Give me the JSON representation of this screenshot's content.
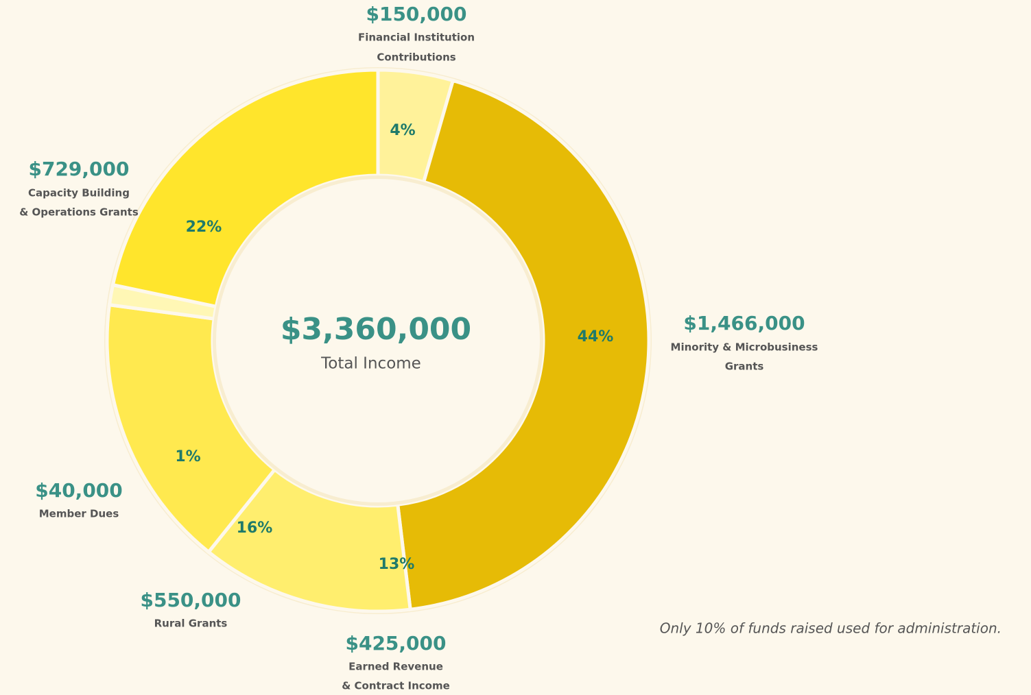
{
  "chart_data": {
    "type": "donut",
    "categories": [
      [
        "Financial Institution",
        "Contributions"
      ],
      [
        "Minority & Microbusiness",
        "Grants"
      ],
      [
        "Earned Revenue",
        "& Contract Income"
      ],
      [
        "Rural Grants"
      ],
      [
        "Member Dues"
      ],
      [
        "Capacity Building",
        "& Operations Grants"
      ]
    ],
    "values": [
      150000,
      1466000,
      425000,
      550000,
      40000,
      729000
    ],
    "value_labels": [
      "$150,000",
      "$1,466,000",
      "$425,000",
      "$550,000",
      "$40,000",
      "$729,000"
    ],
    "percent_labels": [
      "4%",
      "44%",
      "13%",
      "16%",
      "1%",
      "22%"
    ],
    "colors": [
      "#FFF29A",
      "#E6BB06",
      "#FFEE6E",
      "#FFE94F",
      "#FFF7B5",
      "#FFE52C"
    ],
    "total": 3360000,
    "total_label": "$3,360,000",
    "center_text": "Total Income",
    "annotation": "Only 10% of funds raised used for administration."
  }
}
